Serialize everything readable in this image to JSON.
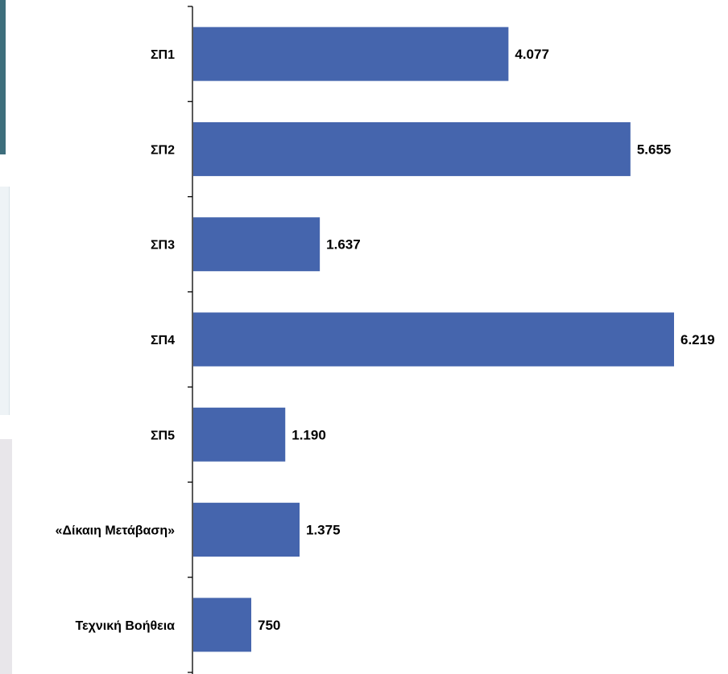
{
  "page": {
    "side_panels": [
      {
        "name": "side-panel-a",
        "color": "#3d6e7c"
      },
      {
        "name": "side-panel-b",
        "color": "#eef3f6"
      },
      {
        "name": "side-panel-c",
        "color": "#e8e6ea"
      }
    ]
  },
  "chart_data": {
    "type": "bar",
    "orientation": "horizontal",
    "title": "",
    "xlabel": "",
    "ylabel": "",
    "categories": [
      "ΣΠ1",
      "ΣΠ2",
      "ΣΠ3",
      "ΣΠ4",
      "ΣΠ5",
      "«Δίκαιη Μετάβαση»",
      "Τεχνική Βοήθεια"
    ],
    "values": [
      4077,
      5655,
      1637,
      6219,
      1190,
      1375,
      750
    ],
    "value_labels": [
      "4.077",
      "5.655",
      "1.637",
      "6.219",
      "1.190",
      "1.375",
      "750"
    ],
    "xlim": [
      0,
      6219
    ],
    "bar_color": "#4565ad",
    "grid": false,
    "legend": "none",
    "value_axis_visible": false
  }
}
